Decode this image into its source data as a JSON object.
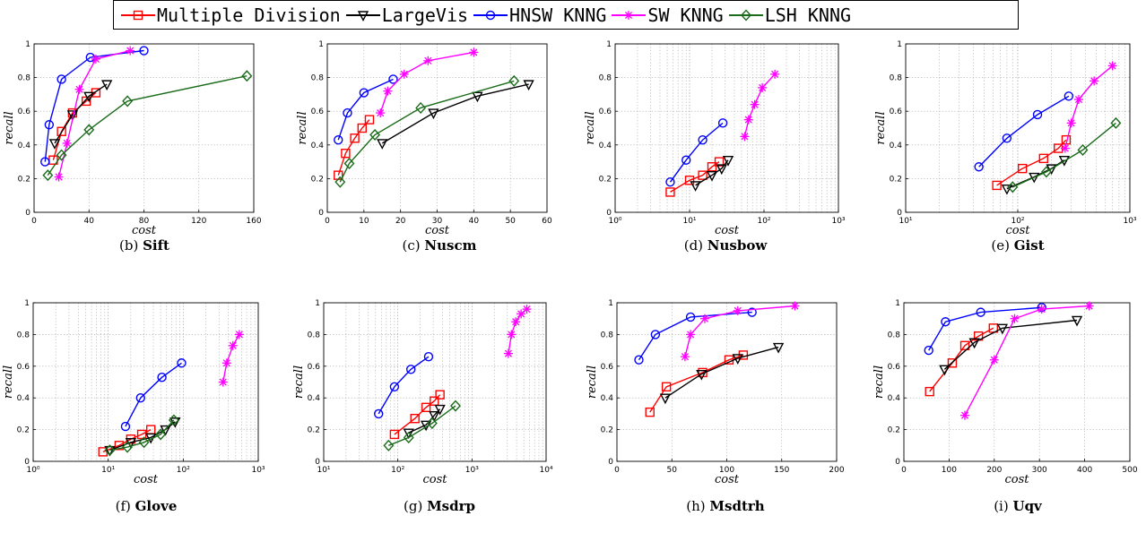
{
  "series_styles": [
    {
      "name": "Multiple Division",
      "color": "#ff0000",
      "marker": "square"
    },
    {
      "name": "LargeVis",
      "color": "#000000",
      "marker": "triangle"
    },
    {
      "name": "HNSW KNNG",
      "color": "#0000ff",
      "marker": "circle"
    },
    {
      "name": "SW KNNG",
      "color": "#ff00ff",
      "marker": "star"
    },
    {
      "name": "LSH KNNG",
      "color": "#1a6b1a",
      "marker": "diamond"
    }
  ],
  "chart_data": [
    {
      "type": "line",
      "tag": "(b)",
      "name": "Sift",
      "xlabel": "cost",
      "ylabel": "recall",
      "xscale": "linear",
      "xlim": [
        0,
        160
      ],
      "ylim": [
        0,
        1
      ],
      "xticks": [
        0,
        40,
        80,
        120,
        160
      ],
      "xticklabels": [
        "0",
        "40",
        "80",
        "120",
        "160"
      ],
      "yticks": [
        0,
        0.2,
        0.4,
        0.6,
        0.8,
        1
      ],
      "yticklabels": [
        "0",
        "0.2",
        "0.4",
        "0.6",
        "0.8",
        "1"
      ],
      "series": [
        {
          "name": "Multiple Division",
          "x": [
            14,
            20,
            28,
            38,
            45
          ],
          "y": [
            0.31,
            0.48,
            0.59,
            0.66,
            0.71
          ]
        },
        {
          "name": "LargeVis",
          "x": [
            15,
            28,
            40,
            53
          ],
          "y": [
            0.41,
            0.58,
            0.69,
            0.76
          ]
        },
        {
          "name": "HNSW KNNG",
          "x": [
            8,
            11,
            20,
            41,
            80
          ],
          "y": [
            0.3,
            0.52,
            0.79,
            0.92,
            0.96
          ]
        },
        {
          "name": "SW KNNG",
          "x": [
            18,
            24,
            33,
            45,
            70
          ],
          "y": [
            0.21,
            0.41,
            0.73,
            0.91,
            0.96
          ]
        },
        {
          "name": "LSH KNNG",
          "x": [
            10,
            20,
            40,
            68,
            155
          ],
          "y": [
            0.22,
            0.34,
            0.49,
            0.66,
            0.81
          ]
        }
      ]
    },
    {
      "type": "line",
      "tag": "(c)",
      "name": "Nuscm",
      "xlabel": "cost",
      "ylabel": "recall",
      "xscale": "linear",
      "xlim": [
        0,
        60
      ],
      "ylim": [
        0,
        1
      ],
      "xticks": [
        0,
        10,
        20,
        30,
        40,
        50,
        60
      ],
      "xticklabels": [
        "0",
        "10",
        "20",
        "30",
        "40",
        "50",
        "60"
      ],
      "yticks": [
        0,
        0.2,
        0.4,
        0.6,
        0.8,
        1
      ],
      "yticklabels": [
        "0",
        "0.2",
        "0.4",
        "0.6",
        "0.8",
        "1"
      ],
      "series": [
        {
          "name": "Multiple Division",
          "x": [
            3,
            5,
            7.5,
            9.5,
            11.5
          ],
          "y": [
            0.22,
            0.35,
            0.44,
            0.5,
            0.55
          ]
        },
        {
          "name": "LargeVis",
          "x": [
            15,
            29,
            41,
            55
          ],
          "y": [
            0.41,
            0.59,
            0.69,
            0.76
          ]
        },
        {
          "name": "HNSW KNNG",
          "x": [
            3,
            5.5,
            10,
            18
          ],
          "y": [
            0.43,
            0.59,
            0.71,
            0.79
          ]
        },
        {
          "name": "SW KNNG",
          "x": [
            14.5,
            16.5,
            21,
            27.5,
            40
          ],
          "y": [
            0.59,
            0.72,
            0.82,
            0.9,
            0.95
          ]
        },
        {
          "name": "LSH KNNG",
          "x": [
            3.5,
            6,
            13,
            25.5,
            51
          ],
          "y": [
            0.18,
            0.29,
            0.46,
            0.62,
            0.78
          ]
        }
      ]
    },
    {
      "type": "line",
      "tag": "(d)",
      "name": "Nusbow",
      "xlabel": "cost",
      "ylabel": "recall",
      "xscale": "log",
      "xlim": [
        1,
        1000
      ],
      "ylim": [
        0,
        1
      ],
      "xticks": [
        1,
        10,
        100,
        1000
      ],
      "xticklabels": [
        "10⁰",
        "10¹",
        "10²",
        "10³"
      ],
      "yticks": [
        0,
        0.2,
        0.4,
        0.6,
        0.8,
        1
      ],
      "yticklabels": [
        "0",
        "0.2",
        "0.4",
        "0.6",
        "0.8",
        "1"
      ],
      "series": [
        {
          "name": "Multiple Division",
          "x": [
            5.5,
            10,
            15,
            20,
            25
          ],
          "y": [
            0.12,
            0.19,
            0.22,
            0.27,
            0.3
          ]
        },
        {
          "name": "LargeVis",
          "x": [
            12,
            20,
            27,
            33
          ],
          "y": [
            0.16,
            0.22,
            0.26,
            0.31
          ]
        },
        {
          "name": "HNSW KNNG",
          "x": [
            5.5,
            9,
            15,
            28
          ],
          "y": [
            0.18,
            0.31,
            0.43,
            0.53
          ]
        },
        {
          "name": "SW KNNG",
          "x": [
            55,
            62,
            75,
            95,
            140
          ],
          "y": [
            0.45,
            0.55,
            0.64,
            0.74,
            0.82
          ]
        },
        {
          "name": "LSH KNNG",
          "x": [],
          "y": []
        }
      ]
    },
    {
      "type": "line",
      "tag": "(e)",
      "name": "Gist",
      "xlabel": "cost",
      "ylabel": "recall",
      "xscale": "log",
      "xlim": [
        10,
        1000
      ],
      "ylim": [
        0,
        1
      ],
      "xticks": [
        10,
        100,
        1000
      ],
      "xticklabels": [
        "10¹",
        "10²",
        "10³"
      ],
      "yticks": [
        0,
        0.2,
        0.4,
        0.6,
        0.8,
        1
      ],
      "yticklabels": [
        "0",
        "0.2",
        "0.4",
        "0.6",
        "0.8",
        "1"
      ],
      "series": [
        {
          "name": "Multiple Division",
          "x": [
            65,
            110,
            170,
            230,
            270
          ],
          "y": [
            0.16,
            0.26,
            0.32,
            0.38,
            0.43
          ]
        },
        {
          "name": "LargeVis",
          "x": [
            80,
            140,
            200,
            260
          ],
          "y": [
            0.14,
            0.21,
            0.26,
            0.31
          ]
        },
        {
          "name": "HNSW KNNG",
          "x": [
            45,
            80,
            150,
            285
          ],
          "y": [
            0.27,
            0.44,
            0.58,
            0.69
          ]
        },
        {
          "name": "SW KNNG",
          "x": [
            265,
            300,
            350,
            480,
            700
          ],
          "y": [
            0.38,
            0.53,
            0.67,
            0.78,
            0.87
          ]
        },
        {
          "name": "LSH KNNG",
          "x": [
            90,
            180,
            380,
            750
          ],
          "y": [
            0.15,
            0.24,
            0.37,
            0.53
          ]
        }
      ]
    },
    {
      "type": "line",
      "tag": "(f)",
      "name": "Glove",
      "xlabel": "cost",
      "ylabel": "recall",
      "xscale": "log",
      "xlim": [
        1,
        1000
      ],
      "ylim": [
        0,
        1
      ],
      "xticks": [
        1,
        10,
        100,
        1000
      ],
      "xticklabels": [
        "10⁰",
        "10¹",
        "10²",
        "10³"
      ],
      "yticks": [
        0,
        0.2,
        0.4,
        0.6,
        0.8,
        1
      ],
      "yticklabels": [
        "0",
        "0.2",
        "0.4",
        "0.6",
        "0.8",
        "1"
      ],
      "series": [
        {
          "name": "Multiple Division",
          "x": [
            8.5,
            14,
            20,
            28,
            37
          ],
          "y": [
            0.06,
            0.1,
            0.14,
            0.17,
            0.2
          ]
        },
        {
          "name": "LargeVis",
          "x": [
            10.5,
            20,
            37,
            58,
            78
          ],
          "y": [
            0.07,
            0.12,
            0.15,
            0.2,
            0.25
          ]
        },
        {
          "name": "HNSW KNNG",
          "x": [
            17,
            27,
            52,
            95
          ],
          "y": [
            0.22,
            0.4,
            0.53,
            0.62
          ]
        },
        {
          "name": "SW KNNG",
          "x": [
            340,
            380,
            460,
            560
          ],
          "y": [
            0.5,
            0.62,
            0.73,
            0.8
          ]
        },
        {
          "name": "LSH KNNG",
          "x": [
            10.5,
            18,
            30,
            50,
            75
          ],
          "y": [
            0.07,
            0.09,
            0.12,
            0.17,
            0.26
          ]
        }
      ]
    },
    {
      "type": "line",
      "tag": "(g)",
      "name": "Msdrp",
      "xlabel": "cost",
      "ylabel": "recall",
      "xscale": "log",
      "xlim": [
        10,
        10000
      ],
      "ylim": [
        0,
        1
      ],
      "xticks": [
        10,
        100,
        1000,
        10000
      ],
      "xticklabels": [
        "10¹",
        "10²",
        "10³",
        "10⁴"
      ],
      "yticks": [
        0,
        0.2,
        0.4,
        0.6,
        0.8,
        1
      ],
      "yticklabels": [
        "0",
        "0.2",
        "0.4",
        "0.6",
        "0.8",
        "1"
      ],
      "series": [
        {
          "name": "Multiple Division",
          "x": [
            90,
            170,
            240,
            310,
            370
          ],
          "y": [
            0.17,
            0.27,
            0.34,
            0.38,
            0.42
          ]
        },
        {
          "name": "LargeVis",
          "x": [
            140,
            240,
            310,
            370
          ],
          "y": [
            0.18,
            0.23,
            0.29,
            0.33
          ]
        },
        {
          "name": "HNSW KNNG",
          "x": [
            55,
            90,
            150,
            260
          ],
          "y": [
            0.3,
            0.47,
            0.58,
            0.66
          ]
        },
        {
          "name": "SW KNNG",
          "x": [
            3100,
            3400,
            3900,
            4600,
            5500
          ],
          "y": [
            0.68,
            0.8,
            0.88,
            0.93,
            0.96
          ]
        },
        {
          "name": "LSH KNNG",
          "x": [
            75,
            140,
            290,
            600
          ],
          "y": [
            0.1,
            0.15,
            0.24,
            0.35
          ]
        }
      ]
    },
    {
      "type": "line",
      "tag": "(h)",
      "name": "Msdtrh",
      "xlabel": "cost",
      "ylabel": "recall",
      "xscale": "linear",
      "xlim": [
        0,
        200
      ],
      "ylim": [
        0,
        1
      ],
      "xticks": [
        0,
        50,
        100,
        150,
        200
      ],
      "xticklabels": [
        "0",
        "50",
        "100",
        "150",
        "200"
      ],
      "yticks": [
        0,
        0.2,
        0.4,
        0.6,
        0.8,
        1
      ],
      "yticklabels": [
        "0",
        "0.2",
        "0.4",
        "0.6",
        "0.8",
        "1"
      ],
      "series": [
        {
          "name": "Multiple Division",
          "x": [
            30,
            45,
            78,
            102,
            115
          ],
          "y": [
            0.31,
            0.47,
            0.56,
            0.64,
            0.67
          ]
        },
        {
          "name": "LargeVis",
          "x": [
            44,
            77,
            110,
            147
          ],
          "y": [
            0.4,
            0.55,
            0.65,
            0.72
          ]
        },
        {
          "name": "HNSW KNNG",
          "x": [
            20,
            35,
            67,
            123
          ],
          "y": [
            0.64,
            0.8,
            0.91,
            0.94
          ]
        },
        {
          "name": "SW KNNG",
          "x": [
            62,
            67,
            80,
            110,
            162
          ],
          "y": [
            0.66,
            0.8,
            0.9,
            0.95,
            0.98
          ]
        },
        {
          "name": "LSH KNNG",
          "x": [],
          "y": []
        }
      ]
    },
    {
      "type": "line",
      "tag": "(i)",
      "name": "Uqv",
      "xlabel": "cost",
      "ylabel": "recall",
      "xscale": "linear",
      "xlim": [
        0,
        500
      ],
      "ylim": [
        0,
        1
      ],
      "xticks": [
        0,
        100,
        200,
        300,
        400,
        500
      ],
      "xticklabels": [
        "0",
        "100",
        "200",
        "300",
        "400",
        "500"
      ],
      "yticks": [
        0,
        0.2,
        0.4,
        0.6,
        0.8,
        1
      ],
      "yticklabels": [
        "0",
        "0.2",
        "0.4",
        "0.6",
        "0.8",
        "1"
      ],
      "series": [
        {
          "name": "Multiple Division",
          "x": [
            57,
            107,
            135,
            165,
            198
          ],
          "y": [
            0.44,
            0.62,
            0.73,
            0.79,
            0.84
          ]
        },
        {
          "name": "LargeVis",
          "x": [
            90,
            156,
            218,
            383
          ],
          "y": [
            0.58,
            0.75,
            0.84,
            0.89
          ]
        },
        {
          "name": "HNSW KNNG",
          "x": [
            55,
            92,
            170,
            305
          ],
          "y": [
            0.7,
            0.88,
            0.94,
            0.97
          ]
        },
        {
          "name": "SW KNNG",
          "x": [
            135,
            200,
            245,
            305,
            410
          ],
          "y": [
            0.29,
            0.64,
            0.9,
            0.96,
            0.98
          ]
        },
        {
          "name": "LSH KNNG",
          "x": [],
          "y": []
        }
      ]
    }
  ]
}
